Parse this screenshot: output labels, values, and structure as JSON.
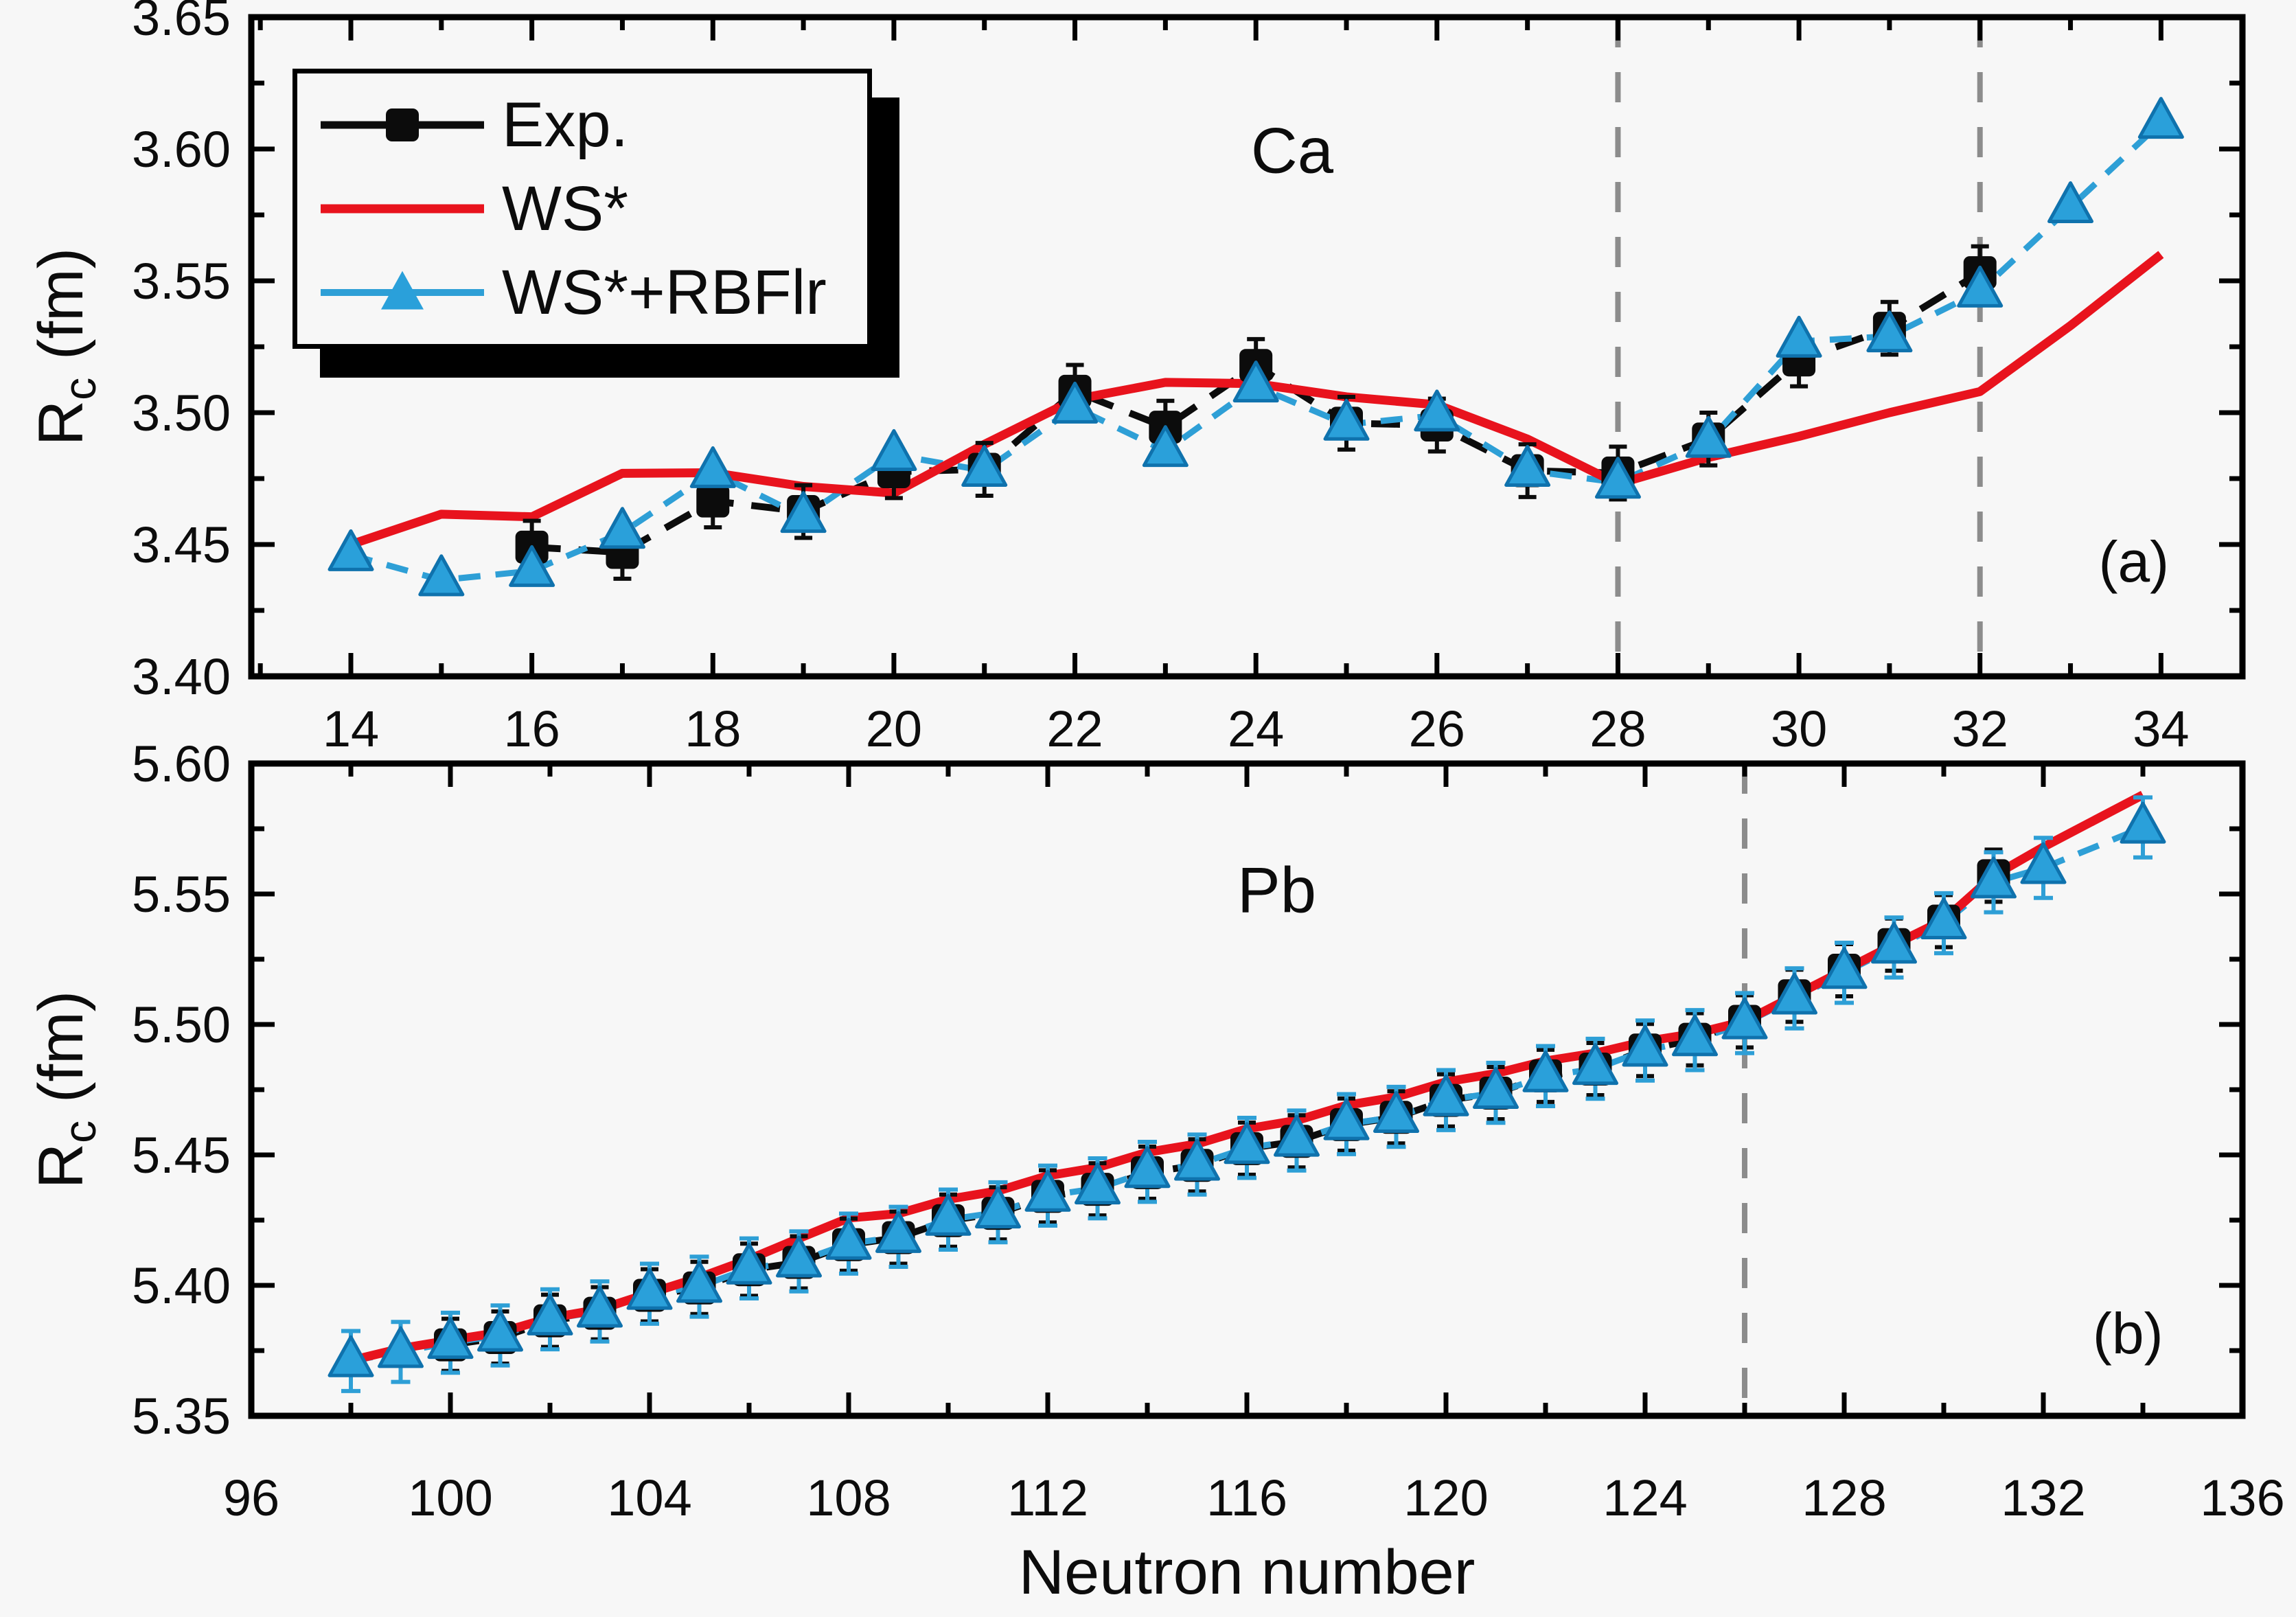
{
  "figure": {
    "background": "#f7f7f7",
    "xlabel": "Neutron number",
    "ylabel": {
      "symbol": "R",
      "subscript": "c",
      "unit": " (fm)"
    }
  },
  "legend": {
    "items": [
      {
        "label": "Exp.",
        "series": "exp"
      },
      {
        "label": "WS*",
        "series": "ws"
      },
      {
        "label": "WS*+RBFlr",
        "series": "rbf"
      }
    ]
  },
  "colors": {
    "exp": "#0c0c0c",
    "ws": "#e8131d",
    "rbf_line": "#2e9fd6",
    "rbf_fill": "#2aa0da",
    "rbf_edge": "#0f72ad",
    "vline": "#8c8c8c",
    "frame": "#000000",
    "background": "#f7f7f7"
  },
  "chart_data": [
    {
      "type": "line",
      "title": "Ca",
      "panel_label": "(a)",
      "xlim": [
        12.9,
        34.9
      ],
      "ylim": [
        3.4,
        3.65
      ],
      "xticks": [
        14,
        16,
        18,
        20,
        22,
        24,
        26,
        28,
        30,
        32,
        34
      ],
      "xminor": [
        13,
        15,
        17,
        19,
        21,
        23,
        25,
        27,
        29,
        31,
        33
      ],
      "yticks": [
        3.4,
        3.45,
        3.5,
        3.55,
        3.6,
        3.65
      ],
      "yminor": [
        3.425,
        3.475,
        3.525,
        3.575,
        3.625
      ],
      "vlines": [
        28,
        32
      ],
      "title_xy": [
        24.4,
        3.591
      ],
      "label_xy": [
        33.7,
        3.436
      ],
      "series": [
        {
          "name": "Exp.",
          "key": "exp",
          "err": 0.01,
          "x": [
            16,
            17,
            18,
            19,
            20,
            21,
            22,
            23,
            24,
            25,
            26,
            27,
            28,
            29,
            30,
            31,
            32
          ],
          "y": [
            3.449,
            3.447,
            3.4665,
            3.4625,
            3.4776,
            3.4785,
            3.5081,
            3.4945,
            3.5179,
            3.496,
            3.4953,
            3.478,
            3.4771,
            3.49,
            3.52,
            3.532,
            3.5531
          ]
        },
        {
          "name": "WS*",
          "key": "ws",
          "x": [
            14,
            15,
            16,
            17,
            18,
            19,
            20,
            21,
            22,
            23,
            24,
            25,
            26,
            27,
            28,
            29,
            30,
            31,
            32,
            33,
            34
          ],
          "y": [
            3.45,
            3.4615,
            3.4605,
            3.477,
            3.4772,
            3.472,
            3.4695,
            3.488,
            3.505,
            3.5115,
            3.511,
            3.506,
            3.503,
            3.49,
            3.473,
            3.483,
            3.491,
            3.5,
            3.508,
            3.533,
            3.56
          ]
        },
        {
          "name": "WS*+RBFlr",
          "key": "rbf",
          "err": 0,
          "x": [
            14,
            15,
            16,
            17,
            18,
            19,
            20,
            21,
            22,
            23,
            24,
            25,
            26,
            27,
            28,
            29,
            30,
            31,
            32,
            33,
            34
          ],
          "y": [
            3.446,
            3.4365,
            3.44,
            3.4545,
            3.4775,
            3.4605,
            3.484,
            3.478,
            3.502,
            3.4855,
            3.51,
            3.4955,
            3.499,
            3.478,
            3.4735,
            3.489,
            3.527,
            3.529,
            3.546,
            3.578,
            3.61
          ]
        }
      ]
    },
    {
      "type": "line",
      "title": "Pb",
      "panel_label": "(b)",
      "xlim": [
        96,
        136
      ],
      "ylim": [
        5.35,
        5.6
      ],
      "xticks": [
        96,
        100,
        104,
        108,
        112,
        116,
        120,
        124,
        128,
        132,
        136
      ],
      "xminor": [
        98,
        102,
        106,
        110,
        114,
        118,
        122,
        126,
        130,
        134
      ],
      "yticks": [
        5.35,
        5.4,
        5.45,
        5.5,
        5.55,
        5.6
      ],
      "yminor": [
        5.375,
        5.425,
        5.475,
        5.525,
        5.575
      ],
      "vlines": [
        126
      ],
      "title_xy": [
        116.6,
        5.543
      ],
      "label_xy": [
        133.7,
        5.374
      ],
      "series": [
        {
          "name": "Exp.",
          "key": "exp",
          "err": 0.01,
          "x": [
            100,
            101,
            102,
            103,
            104,
            105,
            106,
            107,
            108,
            109,
            110,
            111,
            112,
            113,
            114,
            115,
            116,
            117,
            118,
            119,
            120,
            121,
            122,
            123,
            124,
            125,
            126,
            127,
            128,
            129,
            130,
            131
          ],
          "y": [
            5.3772,
            5.38,
            5.3864,
            5.3893,
            5.3962,
            5.399,
            5.406,
            5.4088,
            5.4156,
            5.4183,
            5.4248,
            5.4276,
            5.4341,
            5.4368,
            5.4432,
            5.446,
            5.4524,
            5.4552,
            5.4616,
            5.4644,
            5.4709,
            5.4737,
            5.4803,
            5.4829,
            5.4902,
            5.4943,
            5.5012,
            5.511,
            5.5208,
            5.5306,
            5.5396,
            5.557
          ]
        },
        {
          "name": "WS*",
          "key": "ws",
          "x": [
            98,
            99,
            100,
            101,
            102,
            103,
            104,
            105,
            106,
            107,
            108,
            109,
            110,
            111,
            112,
            113,
            114,
            115,
            116,
            117,
            118,
            119,
            120,
            121,
            122,
            123,
            124,
            125,
            126,
            127,
            128,
            129,
            130,
            131,
            132,
            133,
            134
          ],
          "y": [
            5.3712,
            5.3758,
            5.379,
            5.382,
            5.3875,
            5.3908,
            5.397,
            5.403,
            5.41,
            5.418,
            5.4258,
            5.4275,
            5.433,
            5.4362,
            5.442,
            5.4452,
            5.451,
            5.4542,
            5.46,
            5.4632,
            5.469,
            5.4722,
            5.478,
            5.4812,
            5.486,
            5.489,
            5.4935,
            5.4965,
            5.5012,
            5.511,
            5.5208,
            5.5306,
            5.54,
            5.557,
            5.568,
            5.578,
            5.588
          ]
        },
        {
          "name": "WS*+RBFlr",
          "key": "rbf",
          "err": 0.0115,
          "x": [
            98,
            99,
            100,
            101,
            102,
            103,
            104,
            105,
            106,
            107,
            108,
            109,
            110,
            111,
            112,
            113,
            114,
            115,
            116,
            117,
            118,
            119,
            120,
            121,
            122,
            123,
            124,
            125,
            126,
            127,
            128,
            129,
            130,
            131,
            132,
            134
          ],
          "y": [
            5.371,
            5.3745,
            5.378,
            5.3808,
            5.387,
            5.39,
            5.3968,
            5.3995,
            5.4065,
            5.4092,
            5.416,
            5.4186,
            5.4252,
            5.428,
            5.4344,
            5.4372,
            5.4435,
            5.4463,
            5.4527,
            5.4555,
            5.4618,
            5.4646,
            5.471,
            5.4738,
            5.4802,
            5.483,
            5.49,
            5.494,
            5.5005,
            5.51,
            5.5198,
            5.5295,
            5.5388,
            5.5545,
            5.56,
            5.5755
          ]
        }
      ]
    }
  ]
}
